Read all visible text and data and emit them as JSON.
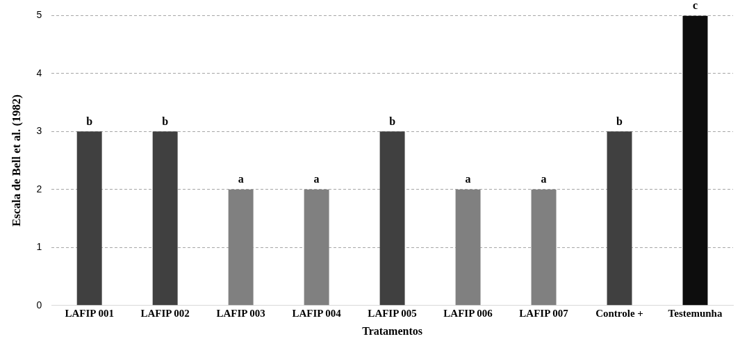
{
  "chart_data": {
    "type": "bar",
    "xlabel": "Tratamentos",
    "ylabel": "Escala de Bell et al. (1982)",
    "categories": [
      "LAFIP 001",
      "LAFIP 002",
      "LAFIP 003",
      "LAFIP 004",
      "LAFIP 005",
      "LAFIP 006",
      "LAFIP 007",
      "Controle +",
      "Testemunha"
    ],
    "values": [
      3,
      3,
      2,
      2,
      3,
      2,
      2,
      3,
      5
    ],
    "colors": [
      "#404040",
      "#404040",
      "#808080",
      "#808080",
      "#404040",
      "#808080",
      "#808080",
      "#404040",
      "#0d0d0d"
    ],
    "ylim": [
      0,
      5
    ],
    "yticks": [
      0,
      1,
      2,
      3,
      4,
      5
    ],
    "grid": "y",
    "legend": false,
    "annotations": [
      {
        "text": "b",
        "x": "LAFIP 001",
        "y": 3
      },
      {
        "text": "b",
        "x": "LAFIP 002",
        "y": 3
      },
      {
        "text": "a",
        "x": "LAFIP 003",
        "y": 2
      },
      {
        "text": "a",
        "x": "LAFIP 004",
        "y": 2
      },
      {
        "text": "b",
        "x": "LAFIP 005",
        "y": 3
      },
      {
        "text": "a",
        "x": "LAFIP 006",
        "y": 2
      },
      {
        "text": "a",
        "x": "LAFIP 007",
        "y": 2
      },
      {
        "text": "b",
        "x": "Controle +",
        "y": 3
      },
      {
        "text": "c",
        "x": "Testemunha",
        "y": 5
      }
    ]
  }
}
